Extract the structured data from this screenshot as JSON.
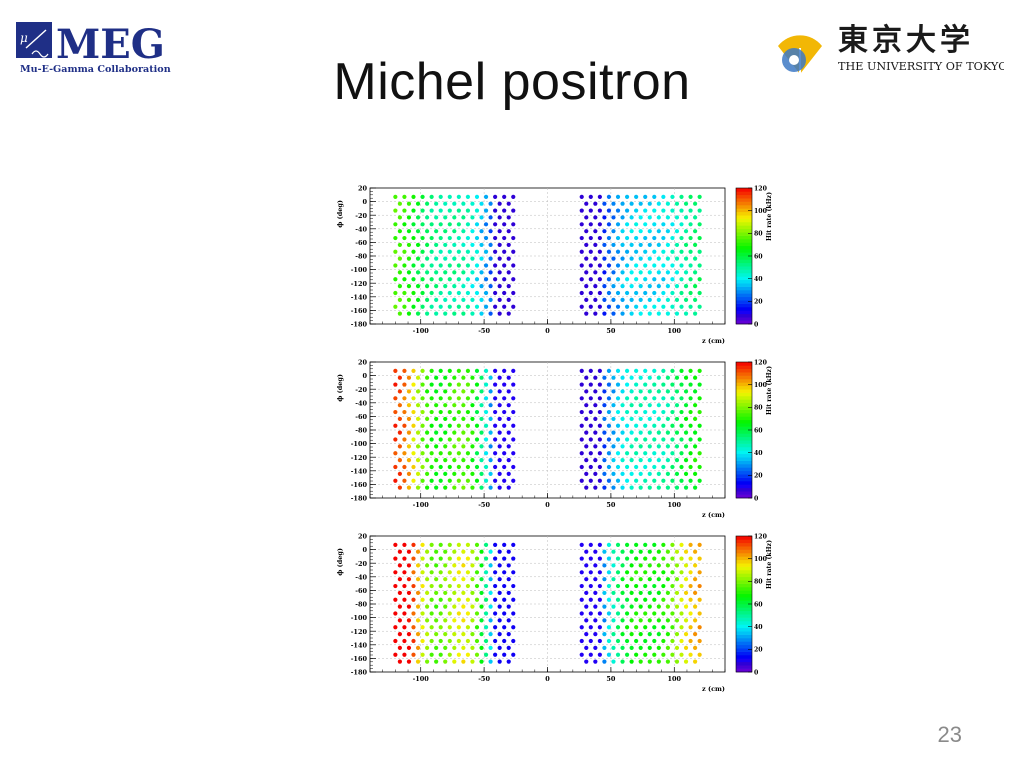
{
  "slide": {
    "title": "Michel positron",
    "page_number": "23"
  },
  "logos": {
    "meg": {
      "wordmark": "MEG",
      "tagline": "Mu-E-Gamma Collaboration",
      "colors": {
        "blue": "#1f2f86",
        "light_blue": "#3b72c4"
      }
    },
    "tokyo": {
      "kanji": "東京大学",
      "english": "THE UNIVERSITY OF TOKYO",
      "colors": {
        "gold": "#f2b705",
        "blue": "#3d79c4",
        "text": "#1a1a1a"
      }
    }
  },
  "chart_data": [
    {
      "type": "scatter",
      "xlabel": "z (cm)",
      "ylabel": "ϕ (deg)",
      "colorbar_label": "Hit rate (kHz)",
      "xticks": [
        "-100",
        "-50",
        "0",
        "50",
        "100"
      ],
      "yticks": [
        "20",
        "0",
        "-20",
        "-40",
        "-60",
        "-80",
        "-100",
        "-120",
        "-140",
        "-160",
        "-180"
      ],
      "zticks": [
        "0",
        "20",
        "40",
        "60",
        "80",
        "100",
        "120"
      ],
      "xlim": [
        -140,
        140
      ],
      "ylim": [
        -180,
        20
      ],
      "zlim": [
        0,
        120
      ],
      "left_group": {
        "z_min": -120,
        "z_max": -27,
        "rate_outer": 68,
        "rate_inner": 8,
        "ripple": 6
      },
      "right_group": {
        "z_min": 27,
        "z_max": 120,
        "rate_outer": 50,
        "rate_inner": 8,
        "ripple": 5
      },
      "phi_rows": {
        "max": 7,
        "min": -165,
        "step": 10.1
      }
    },
    {
      "type": "scatter",
      "xlabel": "z (cm)",
      "ylabel": "ϕ (deg)",
      "colorbar_label": "Hit rate (kHz)",
      "xticks": [
        "-100",
        "-50",
        "0",
        "50",
        "100"
      ],
      "yticks": [
        "20",
        "0",
        "-20",
        "-40",
        "-60",
        "-80",
        "-100",
        "-120",
        "-140",
        "-160",
        "-180"
      ],
      "zticks": [
        "0",
        "20",
        "40",
        "60",
        "80",
        "100",
        "120"
      ],
      "xlim": [
        -140,
        140
      ],
      "ylim": [
        -180,
        20
      ],
      "zlim": [
        0,
        120
      ],
      "left_group": {
        "z_min": -120,
        "z_max": -27,
        "rate_outer": 98,
        "rate_inner": 10,
        "ripple": 16
      },
      "right_group": {
        "z_min": 27,
        "z_max": 120,
        "rate_outer": 62,
        "rate_inner": 8,
        "ripple": 6
      },
      "phi_rows": {
        "max": 7,
        "min": -165,
        "step": 10.1
      }
    },
    {
      "type": "scatter",
      "xlabel": "z (cm)",
      "ylabel": "ϕ (deg)",
      "colorbar_label": "Hit rate (kHz)",
      "xticks": [
        "-100",
        "-50",
        "0",
        "50",
        "100"
      ],
      "yticks": [
        "20",
        "0",
        "-20",
        "-40",
        "-60",
        "-80",
        "-100",
        "-120",
        "-140",
        "-160",
        "-180"
      ],
      "zticks": [
        "0",
        "20",
        "40",
        "60",
        "80",
        "100",
        "120"
      ],
      "xlim": [
        -140,
        140
      ],
      "ylim": [
        -180,
        20
      ],
      "zlim": [
        0,
        120
      ],
      "left_group": {
        "z_min": -120,
        "z_max": -27,
        "rate_outer": 116,
        "rate_inner": 12,
        "ripple": 22
      },
      "right_group": {
        "z_min": 27,
        "z_max": 120,
        "rate_outer": 92,
        "rate_inner": 10,
        "ripple": 10
      },
      "phi_rows": {
        "max": 7,
        "min": -165,
        "step": 10.1
      }
    }
  ]
}
